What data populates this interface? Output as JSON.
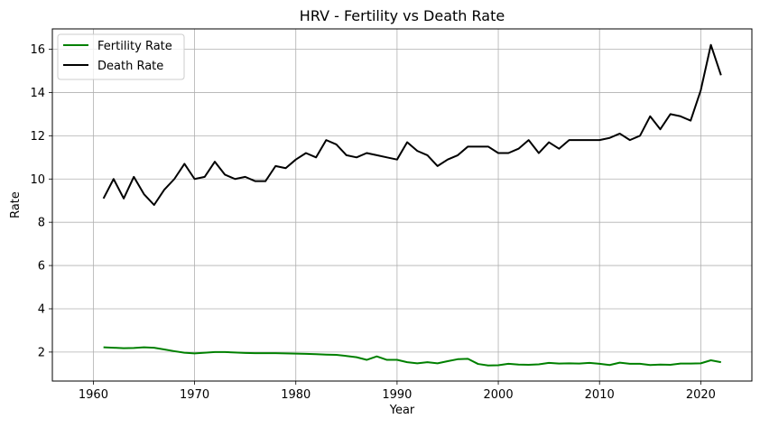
{
  "chart_data": {
    "type": "line",
    "title": "HRV - Fertility vs Death Rate",
    "xlabel": "Year",
    "ylabel": "Rate",
    "xlim": [
      1955.95,
      2025.05
    ],
    "ylim": [
      0.66,
      16.94
    ],
    "xticks": [
      1960,
      1970,
      1980,
      1990,
      2000,
      2010,
      2020
    ],
    "yticks": [
      2,
      4,
      6,
      8,
      10,
      12,
      14,
      16
    ],
    "grid": true,
    "legend_position": "top-left",
    "x": [
      1961,
      1962,
      1963,
      1964,
      1965,
      1966,
      1967,
      1968,
      1969,
      1970,
      1971,
      1972,
      1973,
      1974,
      1975,
      1976,
      1977,
      1978,
      1979,
      1980,
      1981,
      1982,
      1983,
      1984,
      1985,
      1986,
      1987,
      1988,
      1989,
      1990,
      1991,
      1992,
      1993,
      1994,
      1995,
      1996,
      1997,
      1998,
      1999,
      2000,
      2001,
      2002,
      2003,
      2004,
      2005,
      2006,
      2007,
      2008,
      2009,
      2010,
      2011,
      2012,
      2013,
      2014,
      2015,
      2016,
      2017,
      2018,
      2019,
      2020,
      2021,
      2022
    ],
    "series": [
      {
        "name": "Fertility Rate",
        "color": "#008000",
        "values": [
          2.22,
          2.2,
          2.18,
          2.19,
          2.22,
          2.2,
          2.12,
          2.04,
          1.97,
          1.94,
          1.97,
          2.0,
          2.0,
          1.98,
          1.96,
          1.95,
          1.95,
          1.95,
          1.94,
          1.93,
          1.92,
          1.9,
          1.88,
          1.87,
          1.82,
          1.76,
          1.64,
          1.8,
          1.64,
          1.64,
          1.53,
          1.48,
          1.53,
          1.48,
          1.58,
          1.67,
          1.69,
          1.45,
          1.38,
          1.39,
          1.46,
          1.42,
          1.41,
          1.43,
          1.5,
          1.47,
          1.48,
          1.47,
          1.5,
          1.46,
          1.4,
          1.51,
          1.46,
          1.46,
          1.4,
          1.42,
          1.41,
          1.47,
          1.47,
          1.48,
          1.62,
          1.53
        ]
      },
      {
        "name": "Death Rate",
        "color": "#000000",
        "values": [
          9.1,
          10.0,
          9.1,
          10.1,
          9.3,
          8.8,
          9.5,
          10.0,
          10.7,
          10.0,
          10.1,
          10.8,
          10.2,
          10.0,
          10.1,
          9.9,
          9.9,
          10.6,
          10.5,
          10.9,
          11.2,
          11.0,
          11.8,
          11.6,
          11.1,
          11.0,
          11.2,
          11.1,
          11.0,
          10.9,
          11.7,
          11.3,
          11.1,
          10.6,
          10.9,
          11.1,
          11.5,
          11.5,
          11.5,
          11.2,
          11.2,
          11.4,
          11.8,
          11.2,
          11.7,
          11.4,
          11.8,
          11.8,
          11.8,
          11.8,
          11.9,
          12.1,
          11.8,
          12.0,
          12.9,
          12.3,
          13.0,
          12.9,
          12.7,
          14.1,
          16.2,
          14.8
        ]
      }
    ]
  }
}
